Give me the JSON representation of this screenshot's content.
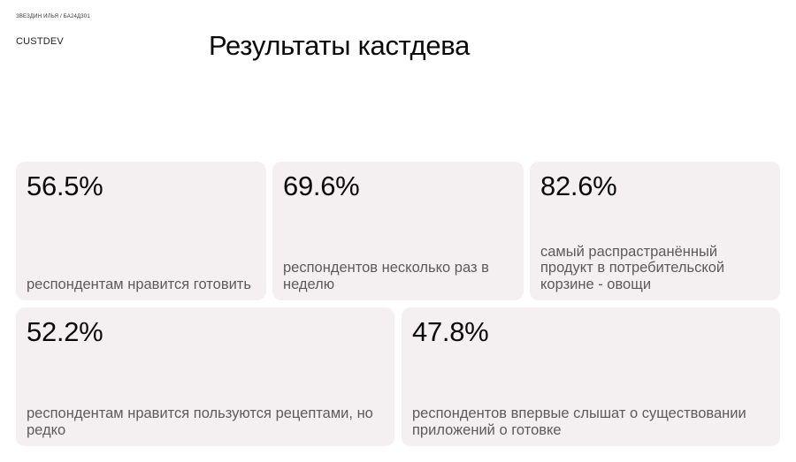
{
  "header": {
    "author": "ЗВЕЗДИН ИЛЬЯ / БА24Д301",
    "section": "CUSTDEV",
    "title": "Результаты кастдева"
  },
  "cards": [
    {
      "value": "56.5%",
      "description": "респондентам нравится готовить"
    },
    {
      "value": "69.6%",
      "description": "респондентов несколько раз в неделю"
    },
    {
      "value": "82.6%",
      "description": "самый распрастранённый продукт в потребительской корзине - овощи"
    },
    {
      "value": "52.2%",
      "description": "респондентам нравится пользуются рецептами, но редко"
    },
    {
      "value": "47.8%",
      "description": "респондентов впервые слышат о существовании приложений о готовке"
    }
  ]
}
